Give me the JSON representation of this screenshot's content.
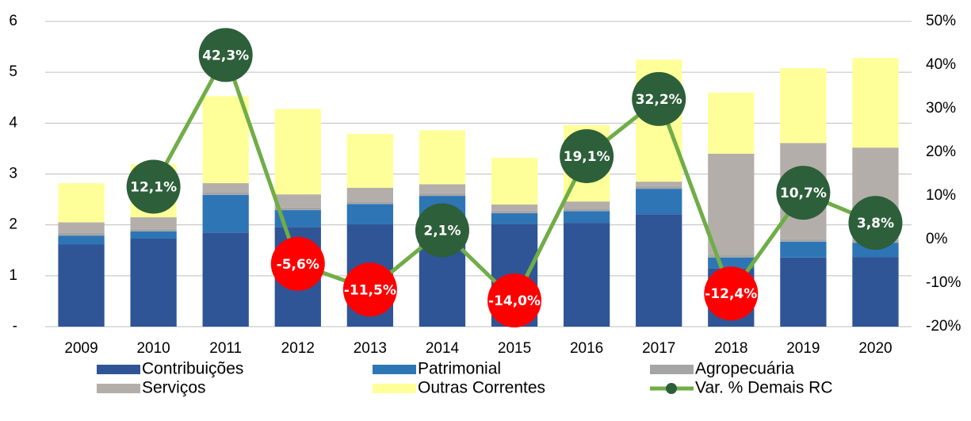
{
  "chart_data": {
    "type": "stacked-bar-line",
    "categories": [
      "2009",
      "2010",
      "2011",
      "2012",
      "2013",
      "2014",
      "2015",
      "2016",
      "2017",
      "2018",
      "2019",
      "2020"
    ],
    "series": [
      {
        "name": "Contribuições",
        "color": "#2f5597",
        "values": [
          1.62,
          1.73,
          1.85,
          1.96,
          2.01,
          1.97,
          2.02,
          2.04,
          2.21,
          1.15,
          1.36,
          1.37
        ]
      },
      {
        "name": "Patrimonial",
        "color": "#2e75b6",
        "values": [
          0.17,
          0.14,
          0.74,
          0.33,
          0.4,
          0.6,
          0.21,
          0.23,
          0.5,
          0.21,
          0.31,
          0.28
        ]
      },
      {
        "name": "Agropecuária",
        "color": "#a5a5a5",
        "values": [
          0.05,
          0.05,
          0.05,
          0.05,
          0.05,
          0.05,
          0.05,
          0.05,
          0.05,
          0.05,
          0.05,
          0.05
        ]
      },
      {
        "name": "Serviços",
        "color": "#b4aeaa",
        "values": [
          0.21,
          0.23,
          0.18,
          0.26,
          0.27,
          0.18,
          0.12,
          0.14,
          0.09,
          1.99,
          1.89,
          1.82
        ]
      },
      {
        "name": "Outras Correntes",
        "color": "#ffff99",
        "values": [
          0.77,
          1.04,
          1.71,
          1.68,
          1.06,
          1.06,
          0.92,
          1.5,
          2.4,
          1.2,
          1.47,
          1.76
        ]
      },
      {
        "name": "Var. % Demais RC",
        "color": "#70ad47",
        "axis": "y2",
        "positive_color": "#2d5f3a",
        "negative_color": "#ff0000",
        "values": [
          null,
          12.1,
          42.3,
          -5.6,
          -11.5,
          2.1,
          -14.0,
          19.1,
          32.2,
          -12.4,
          10.7,
          3.8
        ],
        "value_labels": [
          null,
          "12,1%",
          "42,3%",
          "-5,6%",
          "-11,5%",
          "2,1%",
          "-14,0%",
          "19,1%",
          "32,2%",
          "-12,4%",
          "10,7%",
          "3,8%"
        ]
      }
    ],
    "ylim": [
      0,
      6
    ],
    "yticks": [
      {
        "value": 0,
        "label": "-"
      },
      1,
      2,
      3,
      4,
      5,
      6
    ],
    "y2lim": [
      -20,
      50
    ],
    "y2ticks": [
      {
        "value": -20,
        "label": "-20%"
      },
      {
        "value": -10,
        "label": "-10%"
      },
      {
        "value": 0,
        "label": "0%"
      },
      {
        "value": 10,
        "label": "10%"
      },
      {
        "value": 20,
        "label": "20%"
      },
      {
        "value": 30,
        "label": "30%"
      },
      {
        "value": 40,
        "label": "40%"
      },
      {
        "value": 50,
        "label": "50%"
      }
    ],
    "grid": true,
    "legend": "bottom"
  }
}
